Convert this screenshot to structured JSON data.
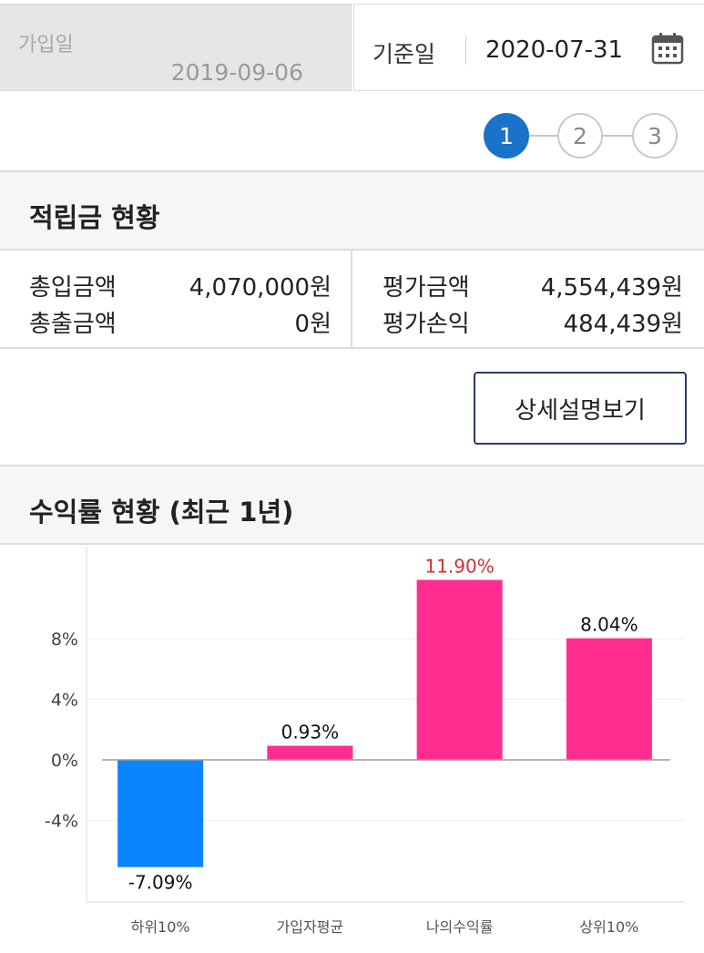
{
  "dates": {
    "join_label": "가입일",
    "join_value": "2019-09-06",
    "base_label": "기준일",
    "base_value": "2020-07-31",
    "calendar_icon": "calendar-icon"
  },
  "steps": {
    "items": [
      "1",
      "2",
      "3"
    ],
    "active_index": 0,
    "active_color": "#1a73c8"
  },
  "savings": {
    "title": "적립금 현황",
    "left": [
      {
        "label": "총입금액",
        "value": "4,070,000원"
      },
      {
        "label": "총출금액",
        "value": "0원"
      }
    ],
    "right": [
      {
        "label": "평가금액",
        "value": "4,554,439원"
      },
      {
        "label": "평가손익",
        "value": "484,439원"
      }
    ]
  },
  "detail_button": "상세설명보기",
  "returns": {
    "title": "수익률 현황 (최근 1년)"
  },
  "chart_data": {
    "type": "bar",
    "categories": [
      "하위10%",
      "가입자평균",
      "나의수익률",
      "상위10%"
    ],
    "values": [
      -7.09,
      0.93,
      11.9,
      8.04
    ],
    "value_labels": [
      "-7.09%",
      "0.93%",
      "11.90%",
      "8.04%"
    ],
    "bar_colors": [
      "#0a84ff",
      "#ff2d8f",
      "#ff2d8f",
      "#ff2d8f"
    ],
    "highlight_label_color": "#d32f2f",
    "highlight_index": 2,
    "yticks": [
      "8%",
      "4%",
      "0%",
      "-4%"
    ],
    "ytick_values": [
      8,
      4,
      0,
      -4
    ],
    "ylim": [
      -9.5,
      14
    ],
    "grid": true
  }
}
